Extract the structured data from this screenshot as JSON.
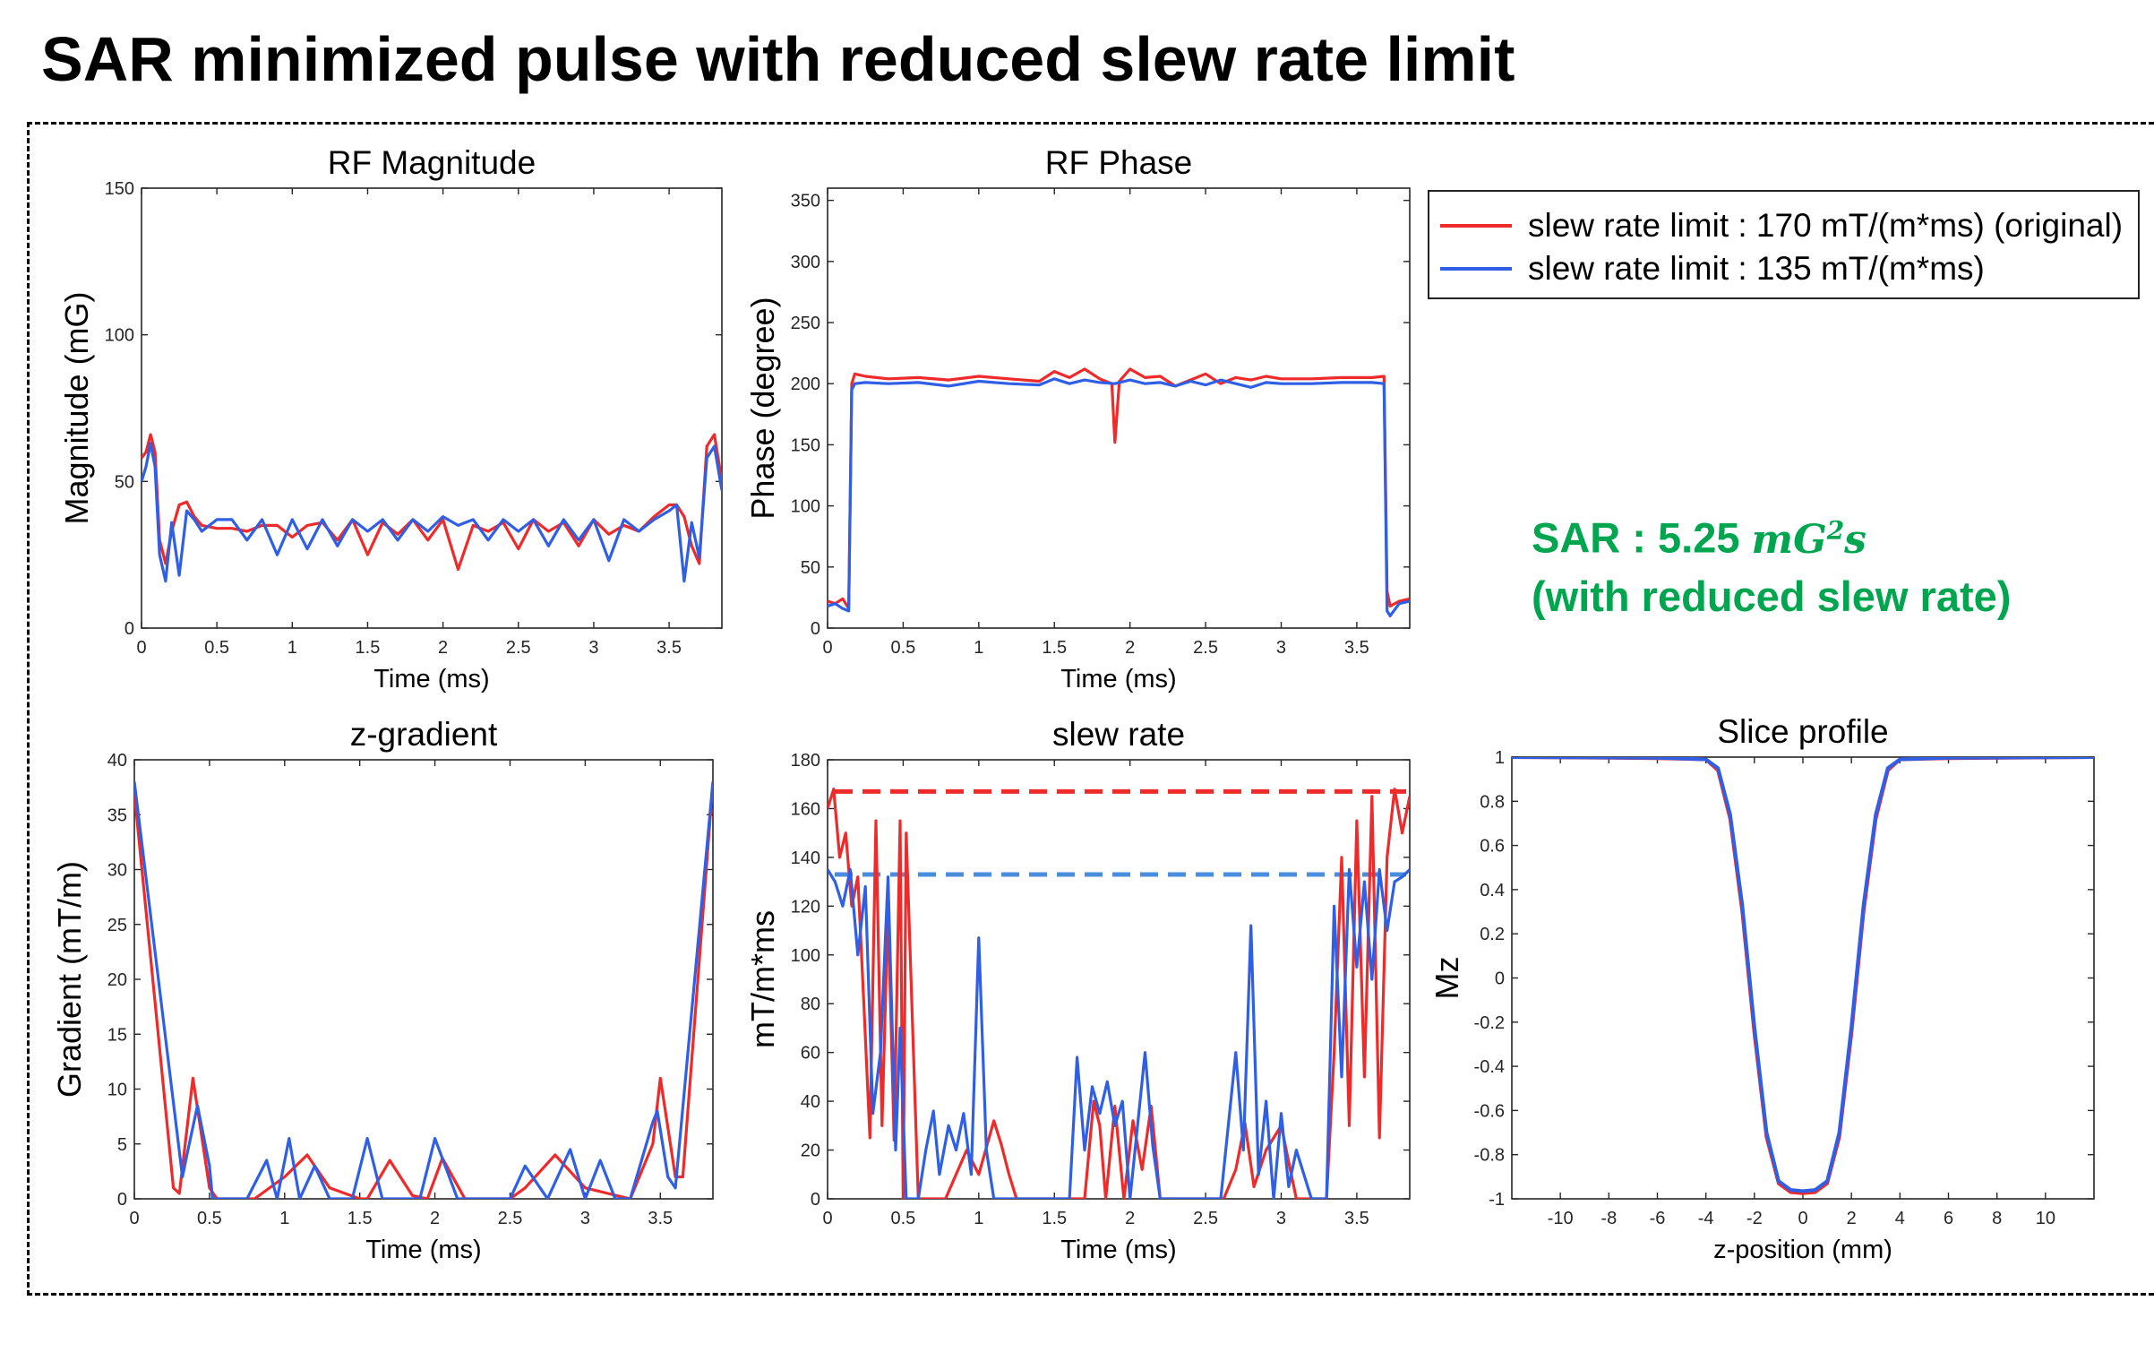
{
  "slide": {
    "title": "SAR minimized pulse with reduced slew rate limit",
    "sar_prefix": "SAR : 5.25 ",
    "sar_unit_base": "mG",
    "sar_unit_exp": "2",
    "sar_unit_s": "s",
    "sar_note": "(with reduced slew rate)"
  },
  "colors": {
    "red": "#ee2a2a",
    "blue": "#2e5fe6",
    "blue_dashed": "#4a8ddc",
    "sar_green": "#00a54f"
  },
  "legend": [
    {
      "label": "slew rate limit : 170 mT/(m*ms) (original)",
      "color": "#ee2a2a"
    },
    {
      "label": "slew rate limit : 135 mT/(m*ms)",
      "color": "#2e5fe6"
    }
  ],
  "chart_data": [
    {
      "id": "rf-magnitude",
      "type": "line",
      "title": "RF Magnitude",
      "xlabel": "Time (ms)",
      "ylabel": "Magnitude (mG)",
      "xlim": [
        0,
        3.85
      ],
      "ylim": [
        0,
        150
      ],
      "xticks": [
        0,
        0.5,
        1,
        1.5,
        2,
        2.5,
        3,
        3.5
      ],
      "yticks": [
        0,
        50,
        100,
        150
      ],
      "series": [
        {
          "name": "slew rate limit : 170 mT/(m*ms) (original)",
          "color": "#ee2a2a",
          "x": [
            0,
            0.03,
            0.06,
            0.09,
            0.12,
            0.16,
            0.2,
            0.25,
            0.3,
            0.35,
            0.4,
            0.5,
            0.6,
            0.7,
            0.8,
            0.9,
            1.0,
            1.1,
            1.2,
            1.3,
            1.4,
            1.5,
            1.6,
            1.7,
            1.8,
            1.9,
            2.0,
            2.1,
            2.2,
            2.3,
            2.4,
            2.5,
            2.6,
            2.7,
            2.8,
            2.9,
            3.0,
            3.1,
            3.2,
            3.3,
            3.4,
            3.5,
            3.55,
            3.6,
            3.65,
            3.7,
            3.75,
            3.8,
            3.85
          ],
          "y": [
            58,
            60,
            66,
            60,
            30,
            22,
            33,
            42,
            43,
            38,
            35,
            34,
            34,
            33,
            35,
            35,
            31,
            35,
            36,
            30,
            37,
            25,
            36,
            32,
            37,
            30,
            37,
            20,
            35,
            33,
            36,
            27,
            37,
            33,
            36,
            28,
            37,
            32,
            35,
            33,
            38,
            42,
            42,
            38,
            28,
            22,
            62,
            66,
            50
          ]
        },
        {
          "name": "slew rate limit : 135 mT/(m*ms)",
          "color": "#2e5fe6",
          "x": [
            0,
            0.03,
            0.06,
            0.09,
            0.12,
            0.16,
            0.2,
            0.25,
            0.3,
            0.35,
            0.4,
            0.5,
            0.6,
            0.7,
            0.8,
            0.9,
            1.0,
            1.1,
            1.2,
            1.3,
            1.4,
            1.5,
            1.6,
            1.7,
            1.8,
            1.9,
            2.0,
            2.1,
            2.2,
            2.3,
            2.4,
            2.5,
            2.6,
            2.7,
            2.8,
            2.9,
            3.0,
            3.1,
            3.2,
            3.3,
            3.4,
            3.5,
            3.55,
            3.6,
            3.65,
            3.7,
            3.75,
            3.8,
            3.85
          ],
          "y": [
            50,
            55,
            63,
            55,
            25,
            16,
            36,
            18,
            40,
            37,
            33,
            37,
            37,
            30,
            37,
            25,
            37,
            27,
            37,
            28,
            37,
            33,
            37,
            30,
            37,
            33,
            38,
            35,
            37,
            30,
            37,
            33,
            37,
            28,
            37,
            30,
            37,
            23,
            37,
            33,
            37,
            40,
            42,
            16,
            36,
            24,
            58,
            62,
            47
          ]
        }
      ]
    },
    {
      "id": "rf-phase",
      "type": "line",
      "title": "RF Phase",
      "xlabel": "Time (ms)",
      "ylabel": "Phase (degree)",
      "xlim": [
        0,
        3.85
      ],
      "ylim": [
        0,
        360
      ],
      "xticks": [
        0,
        0.5,
        1,
        1.5,
        2,
        2.5,
        3,
        3.5
      ],
      "yticks": [
        0,
        50,
        100,
        150,
        200,
        250,
        300,
        350
      ],
      "series": [
        {
          "name": "slew rate limit : 170 mT/(m*ms) (original)",
          "color": "#ee2a2a",
          "x": [
            0,
            0.05,
            0.1,
            0.14,
            0.16,
            0.18,
            0.25,
            0.4,
            0.6,
            0.8,
            1.0,
            1.2,
            1.4,
            1.5,
            1.6,
            1.7,
            1.8,
            1.88,
            1.9,
            1.93,
            2.0,
            2.1,
            2.2,
            2.3,
            2.4,
            2.5,
            2.6,
            2.7,
            2.8,
            2.9,
            3.0,
            3.2,
            3.4,
            3.6,
            3.68,
            3.7,
            3.72,
            3.78,
            3.85
          ],
          "y": [
            22,
            20,
            24,
            16,
            200,
            208,
            206,
            204,
            205,
            203,
            206,
            204,
            202,
            210,
            205,
            212,
            204,
            200,
            152,
            202,
            212,
            205,
            206,
            198,
            203,
            208,
            200,
            205,
            203,
            206,
            204,
            204,
            205,
            205,
            206,
            30,
            18,
            22,
            24
          ]
        },
        {
          "name": "slew rate limit : 135 mT/(m*ms)",
          "color": "#2e5fe6",
          "x": [
            0,
            0.05,
            0.1,
            0.14,
            0.16,
            0.18,
            0.25,
            0.4,
            0.6,
            0.8,
            1.0,
            1.2,
            1.4,
            1.5,
            1.6,
            1.7,
            1.8,
            1.9,
            2.0,
            2.1,
            2.2,
            2.3,
            2.4,
            2.5,
            2.6,
            2.7,
            2.8,
            2.9,
            3.0,
            3.2,
            3.4,
            3.6,
            3.68,
            3.7,
            3.72,
            3.78,
            3.85
          ],
          "y": [
            18,
            20,
            16,
            14,
            195,
            200,
            201,
            200,
            201,
            198,
            202,
            200,
            199,
            204,
            200,
            203,
            201,
            200,
            203,
            200,
            201,
            198,
            202,
            199,
            203,
            200,
            197,
            201,
            200,
            200,
            201,
            201,
            200,
            14,
            10,
            20,
            22
          ]
        }
      ]
    },
    {
      "id": "z-gradient",
      "type": "line",
      "title": "z-gradient",
      "xlabel": "Time (ms)",
      "ylabel": "Gradient (mT/m)",
      "xlim": [
        0,
        3.85
      ],
      "ylim": [
        0,
        40
      ],
      "xticks": [
        0,
        0.5,
        1,
        1.5,
        2,
        2.5,
        3,
        3.5
      ],
      "yticks": [
        0,
        5,
        10,
        15,
        20,
        25,
        30,
        35,
        40
      ],
      "series": [
        {
          "name": "slew rate limit : 170 mT/(m*ms) (original)",
          "color": "#ee2a2a",
          "x": [
            0,
            0.26,
            0.3,
            0.39,
            0.5,
            0.55,
            0.7,
            0.8,
            1.0,
            1.15,
            1.3,
            1.5,
            1.55,
            1.7,
            1.85,
            1.95,
            2.05,
            2.2,
            2.35,
            2.5,
            2.6,
            2.8,
            3.0,
            3.3,
            3.45,
            3.5,
            3.6,
            3.65,
            3.85
          ],
          "y": [
            37,
            1,
            0.5,
            11,
            1,
            0,
            0,
            0,
            2,
            4,
            1,
            0,
            0,
            3.5,
            0.3,
            0,
            3.7,
            0,
            0,
            0,
            1,
            4,
            1,
            0,
            5,
            11,
            2,
            2,
            38
          ]
        },
        {
          "name": "slew rate limit : 135 mT/(m*ms)",
          "color": "#2e5fe6",
          "x": [
            0,
            0.32,
            0.35,
            0.42,
            0.5,
            0.52,
            0.6,
            0.75,
            0.88,
            0.95,
            1.03,
            1.1,
            1.2,
            1.3,
            1.45,
            1.55,
            1.65,
            1.8,
            1.9,
            2.0,
            2.15,
            2.3,
            2.4,
            2.5,
            2.6,
            2.75,
            2.9,
            3.0,
            3.1,
            3.2,
            3.3,
            3.45,
            3.48,
            3.55,
            3.6,
            3.85
          ],
          "y": [
            38,
            2,
            4,
            8.5,
            3,
            0,
            0,
            0,
            3.5,
            0,
            5.5,
            0,
            3,
            0,
            0,
            5.5,
            0,
            0,
            0,
            5.5,
            0,
            0,
            0,
            0,
            3,
            0,
            4.5,
            0,
            3.5,
            0,
            0,
            7,
            8,
            2,
            1,
            38
          ]
        }
      ]
    },
    {
      "id": "slew-rate",
      "type": "line",
      "title": "slew rate",
      "xlabel": "Time (ms)",
      "ylabel": "mT/m*ms",
      "xlim": [
        0,
        3.85
      ],
      "ylim": [
        0,
        180
      ],
      "xticks": [
        0,
        0.5,
        1,
        1.5,
        2,
        2.5,
        3,
        3.5
      ],
      "yticks": [
        0,
        20,
        40,
        60,
        80,
        100,
        120,
        140,
        160,
        180
      ],
      "limits": [
        {
          "value": 167,
          "color": "#ee2a2a"
        },
        {
          "value": 133,
          "color": "#4a8ddc"
        }
      ],
      "series": [
        {
          "name": "slew rate limit : 170 mT/(m*ms) (original)",
          "color": "#ee2a2a",
          "x": [
            0,
            0.04,
            0.08,
            0.12,
            0.16,
            0.2,
            0.24,
            0.28,
            0.32,
            0.36,
            0.4,
            0.44,
            0.48,
            0.5,
            0.52,
            0.6,
            0.7,
            0.78,
            0.85,
            0.92,
            1.0,
            1.1,
            1.15,
            1.2,
            1.25,
            1.3,
            1.38,
            1.45,
            1.6,
            1.7,
            1.76,
            1.8,
            1.84,
            1.9,
            1.96,
            2.02,
            2.08,
            2.14,
            2.2,
            2.3,
            2.4,
            2.48,
            2.55,
            2.62,
            2.7,
            2.76,
            2.82,
            2.9,
            3.0,
            3.1,
            3.2,
            3.3,
            3.35,
            3.4,
            3.45,
            3.5,
            3.55,
            3.6,
            3.65,
            3.7,
            3.75,
            3.8,
            3.85
          ],
          "y": [
            160,
            168,
            140,
            150,
            120,
            132,
            80,
            25,
            155,
            30,
            120,
            24,
            155,
            0,
            150,
            0,
            0,
            0,
            10,
            20,
            10,
            32,
            22,
            10,
            0,
            0,
            0,
            0,
            0,
            0,
            40,
            30,
            0,
            38,
            0,
            32,
            12,
            38,
            0,
            0,
            0,
            0,
            0,
            0,
            12,
            31,
            5,
            20,
            30,
            0,
            0,
            0,
            60,
            140,
            30,
            155,
            50,
            165,
            25,
            140,
            168,
            150,
            165
          ]
        },
        {
          "name": "slew rate limit : 135 mT/(m*ms)",
          "color": "#2e5fe6",
          "x": [
            0,
            0.05,
            0.1,
            0.15,
            0.2,
            0.25,
            0.3,
            0.35,
            0.4,
            0.45,
            0.48,
            0.52,
            0.56,
            0.6,
            0.65,
            0.7,
            0.74,
            0.8,
            0.85,
            0.9,
            0.95,
            1.0,
            1.05,
            1.1,
            1.2,
            1.3,
            1.4,
            1.5,
            1.6,
            1.65,
            1.7,
            1.75,
            1.8,
            1.85,
            1.9,
            1.95,
            2.0,
            2.05,
            2.1,
            2.15,
            2.2,
            2.3,
            2.4,
            2.5,
            2.6,
            2.7,
            2.75,
            2.8,
            2.85,
            2.9,
            2.95,
            3.0,
            3.05,
            3.1,
            3.2,
            3.3,
            3.35,
            3.4,
            3.45,
            3.5,
            3.55,
            3.6,
            3.65,
            3.7,
            3.75,
            3.8,
            3.85
          ],
          "y": [
            135,
            130,
            120,
            135,
            100,
            128,
            35,
            60,
            132,
            20,
            70,
            0,
            0,
            0,
            20,
            36,
            10,
            30,
            20,
            35,
            10,
            107,
            20,
            0,
            0,
            0,
            0,
            0,
            0,
            58,
            20,
            46,
            35,
            48,
            30,
            40,
            0,
            30,
            60,
            22,
            0,
            0,
            0,
            0,
            0,
            60,
            20,
            112,
            10,
            40,
            0,
            35,
            5,
            20,
            0,
            0,
            120,
            50,
            135,
            95,
            130,
            90,
            135,
            110,
            130,
            132,
            135
          ]
        }
      ]
    },
    {
      "id": "slice-profile",
      "type": "line",
      "title": "Slice profile",
      "xlabel": "z-position (mm)",
      "ylabel": "Mz",
      "xlim": [
        -12,
        12
      ],
      "ylim": [
        -1,
        1
      ],
      "xticks": [
        -10,
        -8,
        -6,
        -4,
        -2,
        0,
        2,
        4,
        6,
        8,
        10
      ],
      "yticks": [
        -1,
        -0.8,
        -0.6,
        -0.4,
        -0.2,
        0,
        0.2,
        0.4,
        0.6,
        0.8,
        1
      ],
      "series": [
        {
          "name": "slew rate limit : 170 mT/(m*ms) (original)",
          "color": "#ee2a2a",
          "x": [
            -12,
            -6,
            -4,
            -3.5,
            -3,
            -2.5,
            -2,
            -1.5,
            -1,
            -0.5,
            0,
            0.5,
            1,
            1.5,
            2,
            2.5,
            3,
            3.5,
            4,
            6,
            12
          ],
          "y": [
            1,
            0.995,
            0.99,
            0.94,
            0.72,
            0.3,
            -0.25,
            -0.72,
            -0.93,
            -0.97,
            -0.975,
            -0.97,
            -0.93,
            -0.72,
            -0.25,
            0.3,
            0.72,
            0.94,
            0.99,
            0.995,
            1
          ]
        },
        {
          "name": "slew rate limit : 135 mT/(m*ms)",
          "color": "#2e5fe6",
          "x": [
            -12,
            -6,
            -4,
            -3.5,
            -3,
            -2.5,
            -2,
            -1.5,
            -1,
            -0.5,
            0,
            0.5,
            1,
            1.5,
            2,
            2.5,
            3,
            3.5,
            4,
            6,
            12
          ],
          "y": [
            1,
            0.997,
            0.99,
            0.95,
            0.74,
            0.33,
            -0.22,
            -0.7,
            -0.92,
            -0.96,
            -0.965,
            -0.96,
            -0.92,
            -0.7,
            -0.22,
            0.33,
            0.74,
            0.95,
            0.99,
            0.997,
            1
          ]
        }
      ]
    }
  ]
}
